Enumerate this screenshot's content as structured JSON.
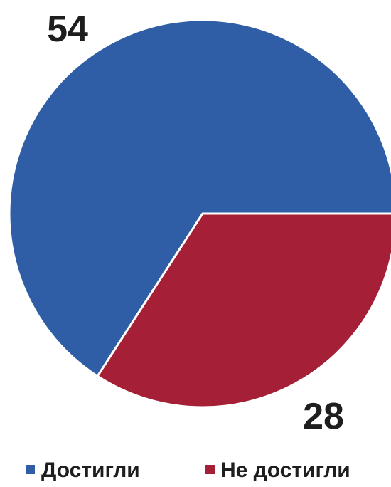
{
  "chart_data": {
    "type": "pie",
    "categories": [
      "Достигли",
      "Не достигли"
    ],
    "values": [
      54,
      28
    ],
    "colors": [
      "#2f5ea6",
      "#a51f36"
    ],
    "data_labels": [
      "54",
      "28"
    ],
    "legend": {
      "placement": "bottom",
      "entries": [
        "Достигли",
        "Не достигли"
      ]
    },
    "title": ""
  }
}
